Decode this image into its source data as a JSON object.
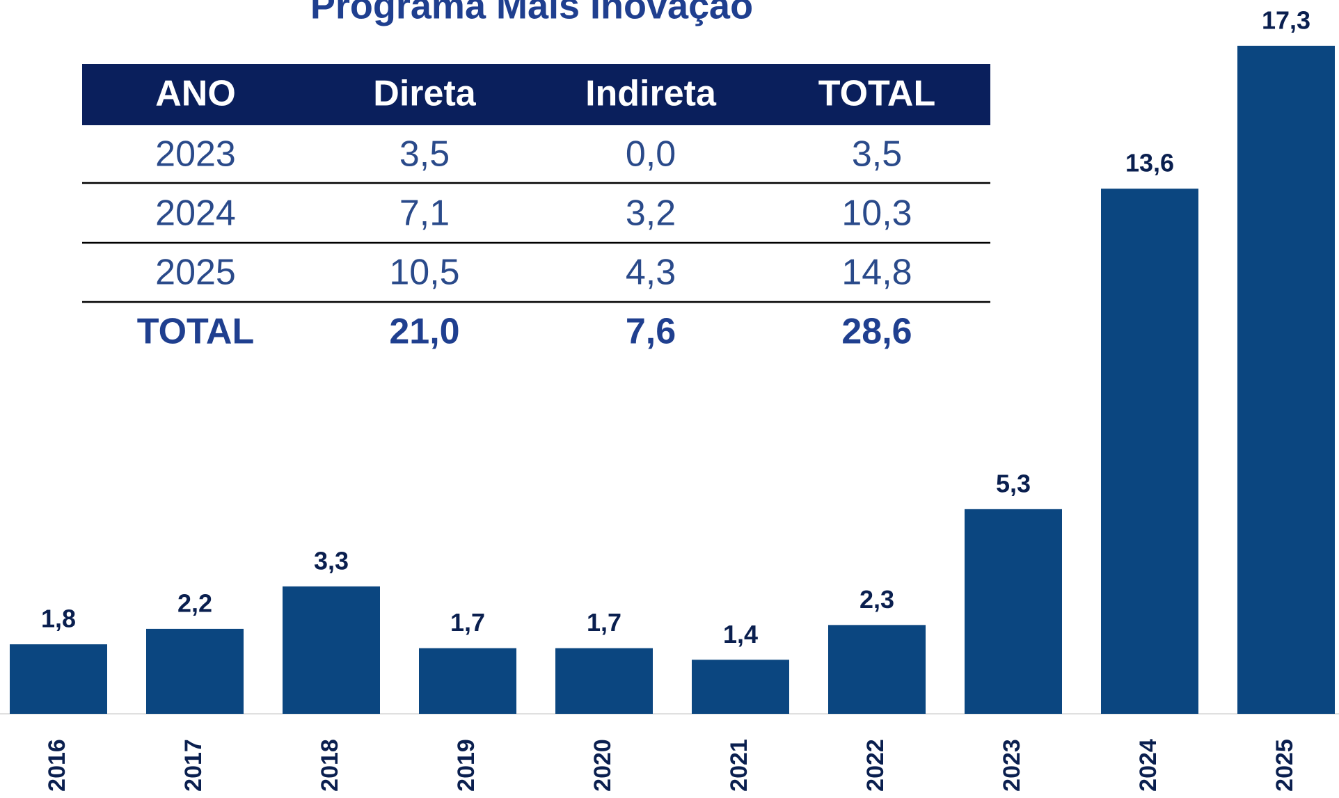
{
  "chart_data": {
    "type": "bar",
    "title": "Programa Mais Inovação",
    "categories": [
      "2016",
      "2017",
      "2018",
      "2019",
      "2020",
      "2021",
      "2022",
      "2023",
      "2024",
      "2025"
    ],
    "values": [
      1.8,
      2.2,
      3.3,
      1.7,
      1.7,
      1.4,
      2.3,
      5.3,
      13.6,
      17.3
    ],
    "value_labels": [
      "1,8",
      "2,2",
      "3,3",
      "1,7",
      "1,7",
      "1,4",
      "2,3",
      "5,3",
      "13,6",
      "17,3"
    ],
    "color": "#0b4680"
  },
  "table": {
    "header": [
      "ANO",
      "Direta",
      "Indireta",
      "TOTAL"
    ],
    "rows": [
      [
        "2023",
        "3,5",
        "0,0",
        "3,5"
      ],
      [
        "2024",
        "7,1",
        "3,2",
        "10,3"
      ],
      [
        "2025",
        "10,5",
        "4,3",
        "14,8"
      ]
    ],
    "total": [
      "TOTAL",
      "21,0",
      "7,6",
      "28,6"
    ]
  }
}
